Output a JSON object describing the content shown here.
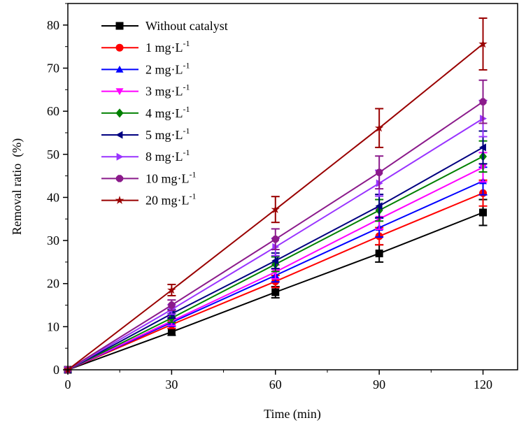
{
  "chart_data": {
    "type": "line",
    "title": "",
    "xlabel": "Time (min)",
    "ylabel": "Removal ratio  (%)",
    "xlim": [
      0,
      130
    ],
    "ylim": [
      0,
      85
    ],
    "xticks": [
      0,
      30,
      60,
      90,
      120
    ],
    "yticks": [
      0,
      10,
      20,
      30,
      40,
      50,
      60,
      70,
      80
    ],
    "legend_position": "top-left",
    "x": [
      0,
      30,
      60,
      90,
      120
    ],
    "series": [
      {
        "name": "Without catalyst",
        "sup": "",
        "color": "#000000",
        "marker": "square",
        "values": [
          0,
          8.8,
          18.0,
          27.0,
          36.5
        ],
        "errors": [
          0,
          0.8,
          1.3,
          2.0,
          3.0
        ]
      },
      {
        "name": "1 mg·L",
        "sup": "-1",
        "color": "#ff0000",
        "marker": "circle",
        "values": [
          0,
          10.5,
          20.5,
          31.0,
          41.0
        ],
        "errors": [
          0,
          0.9,
          1.4,
          2.0,
          3.0
        ]
      },
      {
        "name": "2 mg·L",
        "sup": "-1",
        "color": "#0000ff",
        "marker": "triangle-up",
        "values": [
          0,
          11.0,
          21.9,
          33.0,
          43.8
        ],
        "errors": [
          0,
          0.9,
          1.5,
          2.2,
          3.2
        ]
      },
      {
        "name": "3 mg·L",
        "sup": "-1",
        "color": "#ff00ff",
        "marker": "triangle-down",
        "values": [
          0,
          11.3,
          22.7,
          35.0,
          47.0
        ],
        "errors": [
          0,
          1.0,
          1.6,
          2.4,
          3.4
        ]
      },
      {
        "name": "4 mg·L",
        "sup": "-1",
        "color": "#008000",
        "marker": "diamond",
        "values": [
          0,
          12.0,
          24.5,
          37.0,
          49.5
        ],
        "errors": [
          0,
          1.0,
          1.7,
          2.5,
          3.6
        ]
      },
      {
        "name": "5 mg·L",
        "sup": "-1",
        "color": "#000080",
        "marker": "triangle-left",
        "values": [
          0,
          13.0,
          25.3,
          38.0,
          51.6
        ],
        "errors": [
          0,
          1.0,
          1.8,
          2.7,
          3.8
        ]
      },
      {
        "name": "8 mg·L",
        "sup": "-1",
        "color": "#9933ff",
        "marker": "triangle-right",
        "values": [
          0,
          14.0,
          28.5,
          43.3,
          58.3
        ],
        "errors": [
          0,
          1.1,
          2.0,
          3.0,
          4.2
        ]
      },
      {
        "name": "10 mg·L",
        "sup": "-1",
        "color": "#8b1a8b",
        "marker": "hexagon",
        "values": [
          0,
          15.0,
          30.3,
          45.8,
          62.2
        ],
        "errors": [
          0,
          1.2,
          2.4,
          3.8,
          5.0
        ]
      },
      {
        "name": "20 mg·L",
        "sup": "-1",
        "color": "#990000",
        "marker": "star",
        "values": [
          0,
          18.5,
          37.2,
          56.1,
          75.6
        ],
        "errors": [
          0,
          1.3,
          3.0,
          4.5,
          6.0
        ]
      }
    ]
  }
}
